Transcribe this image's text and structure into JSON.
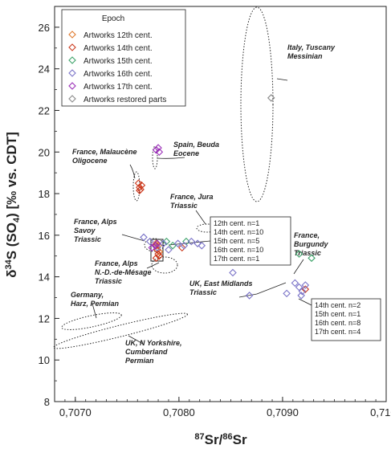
{
  "chart_data": {
    "type": "scatter",
    "xlabel": "87Sr/86Sr",
    "ylabel": "δ34S (SO4) [‰ vs. CDT]",
    "xlim": [
      0.7068,
      0.71
    ],
    "ylim": [
      8,
      27
    ],
    "x_ticks": [
      0.707,
      0.708,
      0.709,
      0.71
    ],
    "x_tick_labels": [
      "0,7070",
      "0,7080",
      "0,7090",
      "0,7100"
    ],
    "y_ticks": [
      8,
      10,
      12,
      14,
      16,
      18,
      20,
      22,
      24,
      26
    ],
    "grid": false,
    "legend_position": "top-left",
    "legend_title": "Epoch",
    "series": [
      {
        "name": "Artworks 12th cent.",
        "color": "#e07a2e",
        "x": [
          0.70778,
          0.70779,
          0.7078,
          0.70781
        ],
        "y": [
          15.6,
          15.3,
          15.5,
          15.2
        ]
      },
      {
        "name": "Artworks 14th cent.",
        "color": "#cc3b1f",
        "x": [
          0.70761,
          0.70762,
          0.70763,
          0.70764,
          0.70762,
          0.70778,
          0.70779,
          0.7078,
          0.70781,
          0.70778,
          0.70803,
          0.70922
        ],
        "y": [
          18.5,
          18.3,
          18.2,
          18.4,
          18.15,
          15.5,
          15.3,
          15.1,
          15.0,
          14.9,
          15.4,
          13.4
        ]
      },
      {
        "name": "Artworks 15th cent.",
        "color": "#3ea36a",
        "x": [
          0.70788,
          0.70794,
          0.70807,
          0.70916,
          0.70928
        ],
        "y": [
          15.7,
          15.5,
          15.7,
          15.1,
          14.9
        ]
      },
      {
        "name": "Artworks 16th cent.",
        "color": "#7b74c8",
        "x": [
          0.70766,
          0.70772,
          0.70779,
          0.70785,
          0.7079,
          0.70799,
          0.70805,
          0.70812,
          0.70818,
          0.70822,
          0.70852,
          0.70868,
          0.70904,
          0.70912,
          0.70916,
          0.70919,
          0.70922,
          0.70918
        ],
        "y": [
          15.9,
          15.7,
          15.4,
          15.6,
          15.3,
          15.6,
          15.5,
          15.7,
          15.6,
          15.5,
          14.2,
          13.1,
          13.2,
          13.7,
          13.5,
          13.3,
          13.6,
          13.1
        ]
      },
      {
        "name": "Artworks 17th cent.",
        "color": "#9b2fb8",
        "x": [
          0.70778,
          0.7078,
          0.70781,
          0.70779,
          0.70774,
          0.70777
        ],
        "y": [
          20.1,
          20.2,
          20.0,
          15.6,
          15.4,
          15.5
        ]
      },
      {
        "name": "Artworks restored parts",
        "color": "#8a8a8a",
        "x": [
          0.70889
        ],
        "y": [
          22.6
        ]
      }
    ],
    "annotations": [
      "Italy, Tuscany Messinian",
      "Spain, Beuda Eocene",
      "France, Malaucène Oligocene",
      "France, Jura Triassic",
      "France, Alps Savoy Triassic",
      "France, Burgundy Triassic",
      "France, Alps N.-D.-de-Mésage Triassic",
      "UK, East Midlands Triassic",
      "Germany, Harz, Permian",
      "UK, N Yorkshire, Cumberland Permian"
    ],
    "count_boxes": [
      [
        "12th cent. n=1",
        "14th cent. n=10",
        "15th cent. n=5",
        "16th cent. n=10",
        "17th cent. n=1"
      ],
      [
        "14th cent. n=2",
        "15th cent. n=1",
        "16th cent. n=8",
        "17th cent. n=4"
      ]
    ]
  }
}
